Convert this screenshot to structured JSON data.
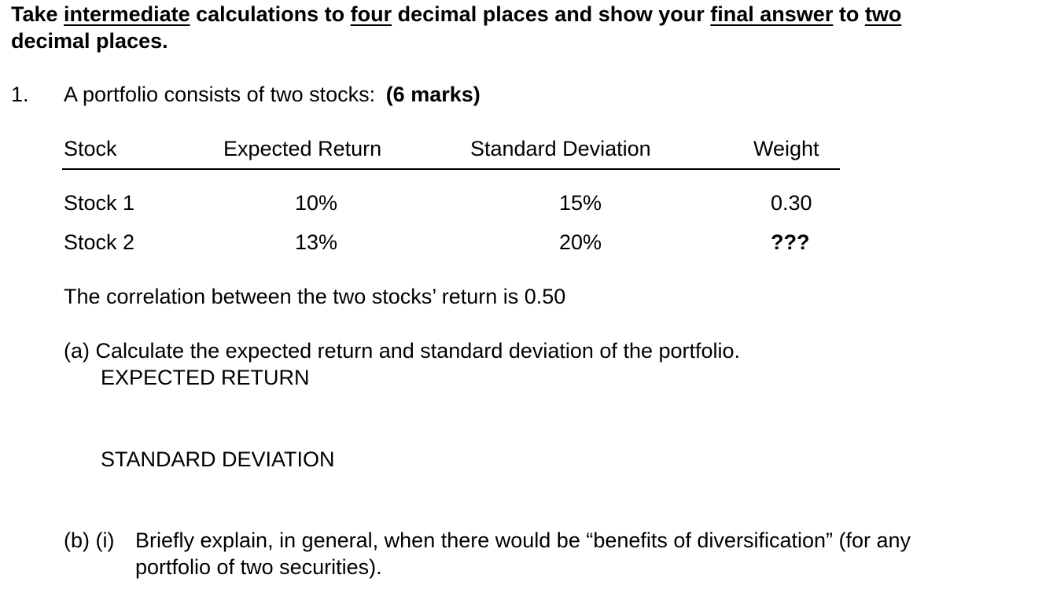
{
  "instructions": {
    "p1": "Take ",
    "u1": "intermediate",
    "p2": " calculations to ",
    "u2": "four",
    "p3": " decimal places and show your ",
    "u3": "final answer",
    "p4": " to ",
    "u4": "two",
    "line2": "decimal places."
  },
  "question": {
    "number": "1.",
    "text": "A portfolio consists of two stocks:",
    "marks": "(6 marks)"
  },
  "table": {
    "headers": [
      "Stock",
      "Expected Return",
      "Standard Deviation",
      "Weight"
    ],
    "rows": [
      {
        "stock": "Stock 1",
        "expected_return": "10%",
        "std_dev": "15%",
        "weight": "0.30"
      },
      {
        "stock": "Stock 2",
        "expected_return": "13%",
        "std_dev": "20%",
        "weight": "???"
      }
    ]
  },
  "correlation_text": "The correlation between the two stocks’ return is 0.50",
  "part_a": {
    "text": "(a) Calculate the expected return and standard deviation of the portfolio.",
    "expected_return_label": "EXPECTED RETURN",
    "std_dev_label": "STANDARD DEVIATION"
  },
  "part_b": {
    "label": "(b) (i)",
    "line1": "Briefly explain, in general, when there would be “benefits of diversification” (for any",
    "line2": "portfolio of two securities)."
  }
}
